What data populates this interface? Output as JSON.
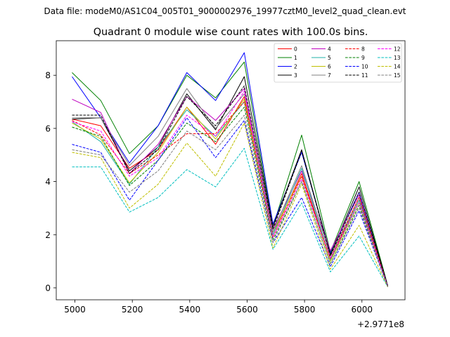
{
  "chart_data": {
    "type": "line",
    "suptitle": "Data file: modeM0/AS1C04_005T01_9000002976_19977cztM0_level2_quad_clean.evt",
    "title": "Quadrant 0 module wise count rates with 100.0s bins.",
    "xlabel": "",
    "ylabel": "",
    "x_offset_label": "+2.9771e8",
    "x": [
      4990,
      5090,
      5190,
      5290,
      5390,
      5490,
      5590,
      5690,
      5790,
      5890,
      5990,
      6090
    ],
    "xlim": [
      4935,
      6150
    ],
    "ylim": [
      -0.45,
      9.3
    ],
    "xticks": [
      5000,
      5200,
      5400,
      5600,
      5800,
      6000
    ],
    "xtick_labels": [
      "5000",
      "5200",
      "5400",
      "5600",
      "5800",
      "6000"
    ],
    "yticks": [
      0,
      2,
      4,
      6,
      8
    ],
    "ytick_labels": [
      "0",
      "2",
      "4",
      "6",
      "8"
    ],
    "legend_position": "top-right",
    "series": [
      {
        "name": "0",
        "color": "#ff0000",
        "dash": "solid",
        "values": [
          6.35,
          6.1,
          4.5,
          5.2,
          6.8,
          5.4,
          7.2,
          2.0,
          4.3,
          1.1,
          3.3,
          0.05
        ]
      },
      {
        "name": "1",
        "color": "#008000",
        "dash": "solid",
        "values": [
          8.1,
          7.05,
          5.05,
          6.1,
          8.0,
          7.15,
          8.5,
          2.3,
          5.75,
          1.35,
          4.0,
          0.08
        ]
      },
      {
        "name": "2",
        "color": "#0000ff",
        "dash": "solid",
        "values": [
          7.95,
          6.4,
          4.7,
          6.1,
          8.1,
          7.05,
          8.85,
          2.4,
          5.1,
          1.3,
          3.6,
          0.07
        ]
      },
      {
        "name": "3",
        "color": "#000000",
        "dash": "solid",
        "values": [
          6.35,
          6.4,
          4.4,
          5.3,
          7.3,
          5.95,
          7.95,
          2.3,
          5.2,
          1.25,
          3.8,
          0.07
        ]
      },
      {
        "name": "4",
        "color": "#bf00bf",
        "dash": "solid",
        "values": [
          7.1,
          6.6,
          4.3,
          5.4,
          7.2,
          6.3,
          7.5,
          2.2,
          4.4,
          1.4,
          3.5,
          0.06
        ]
      },
      {
        "name": "5",
        "color": "#20b2aa",
        "dash": "solid",
        "values": [
          6.25,
          5.5,
          3.9,
          5.3,
          6.7,
          5.7,
          7.0,
          2.0,
          4.5,
          1.05,
          3.3,
          0.05
        ]
      },
      {
        "name": "6",
        "color": "#bfbf00",
        "dash": "solid",
        "values": [
          6.2,
          5.6,
          3.95,
          5.1,
          6.8,
          5.6,
          7.1,
          2.1,
          4.2,
          1.0,
          3.2,
          0.05
        ]
      },
      {
        "name": "7",
        "color": "#808080",
        "dash": "solid",
        "values": [
          6.4,
          6.4,
          4.6,
          5.7,
          7.5,
          6.0,
          7.3,
          2.1,
          4.6,
          1.2,
          3.4,
          0.06
        ]
      },
      {
        "name": "8",
        "color": "#ff0000",
        "dash": "dashed",
        "values": [
          6.3,
          5.75,
          4.3,
          5.0,
          5.8,
          5.8,
          7.0,
          1.9,
          4.2,
          1.1,
          3.4,
          0.05
        ]
      },
      {
        "name": "9",
        "color": "#008000",
        "dash": "dashed",
        "values": [
          6.05,
          5.7,
          3.85,
          4.8,
          6.2,
          5.5,
          6.8,
          1.8,
          4.0,
          0.9,
          3.1,
          0.05
        ]
      },
      {
        "name": "10",
        "color": "#0000ff",
        "dash": "dashed",
        "values": [
          5.4,
          5.1,
          3.3,
          4.8,
          6.4,
          4.9,
          6.3,
          1.7,
          3.4,
          0.8,
          2.9,
          0.04
        ]
      },
      {
        "name": "11",
        "color": "#000000",
        "dash": "dashed",
        "values": [
          6.5,
          6.5,
          4.3,
          5.2,
          7.2,
          6.1,
          7.6,
          2.2,
          5.15,
          1.2,
          3.6,
          0.06
        ]
      },
      {
        "name": "12",
        "color": "#ff00ff",
        "dash": "dashed",
        "values": [
          6.25,
          5.9,
          4.2,
          4.9,
          6.5,
          5.7,
          7.4,
          1.9,
          4.1,
          1.1,
          3.2,
          0.05
        ]
      },
      {
        "name": "13",
        "color": "#00bfbf",
        "dash": "dashed",
        "values": [
          4.55,
          4.55,
          2.85,
          3.4,
          4.45,
          3.8,
          5.25,
          1.45,
          3.2,
          0.6,
          1.95,
          0.03
        ]
      },
      {
        "name": "14",
        "color": "#bfbf00",
        "dash": "dashed",
        "values": [
          5.1,
          4.9,
          3.0,
          3.9,
          5.45,
          4.2,
          6.2,
          1.5,
          3.9,
          0.7,
          2.35,
          0.03
        ]
      },
      {
        "name": "15",
        "color": "#808080",
        "dash": "dashed",
        "values": [
          5.2,
          5.0,
          3.6,
          4.4,
          5.9,
          5.2,
          6.5,
          1.7,
          4.0,
          0.9,
          3.0,
          0.04
        ]
      }
    ]
  }
}
